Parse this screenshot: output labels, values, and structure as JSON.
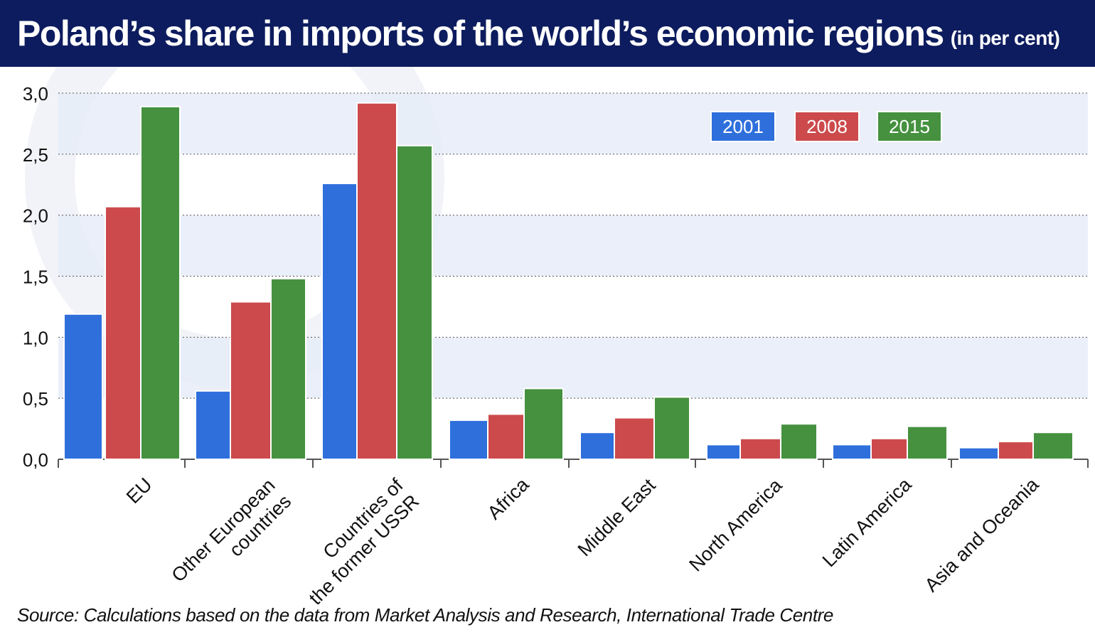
{
  "title": "Poland’s share in imports of the world’s economic regions",
  "subtitle": "(in per cent)",
  "source": "Source: Calculations based on the data from Market Analysis and Research, International Trade Centre",
  "colors": {
    "header_bg": "#0d1c5e",
    "band": "#e6ecf8",
    "series": [
      "#2e6fdc",
      "#cc4a4c",
      "#45913f"
    ]
  },
  "chart_data": {
    "type": "bar",
    "title": "Poland’s share in imports of the world’s economic regions",
    "subtitle": "(in per cent)",
    "xlabel": "",
    "ylabel": "",
    "ylim": [
      0,
      3.0
    ],
    "yticks": [
      "0,0",
      "0,5",
      "1,0",
      "1,5",
      "2,0",
      "2,5",
      "3,0"
    ],
    "grid": "horizontal dotted, alternating shaded bands",
    "legend": "top-right",
    "categories": [
      [
        "EU"
      ],
      [
        "Other European",
        "countries"
      ],
      [
        "Countries of",
        "the former USSR"
      ],
      [
        "Africa"
      ],
      [
        "Middle East"
      ],
      [
        "North America"
      ],
      [
        "Latin America"
      ],
      [
        "Asia and Oceania"
      ]
    ],
    "series": [
      {
        "name": "2001",
        "values": [
          1.19,
          0.56,
          2.26,
          0.32,
          0.22,
          0.12,
          0.12,
          0.095
        ]
      },
      {
        "name": "2008",
        "values": [
          2.07,
          1.29,
          2.92,
          0.37,
          0.34,
          0.17,
          0.17,
          0.145
        ]
      },
      {
        "name": "2015",
        "values": [
          2.89,
          1.48,
          2.57,
          0.58,
          0.51,
          0.29,
          0.27,
          0.22
        ]
      }
    ]
  }
}
